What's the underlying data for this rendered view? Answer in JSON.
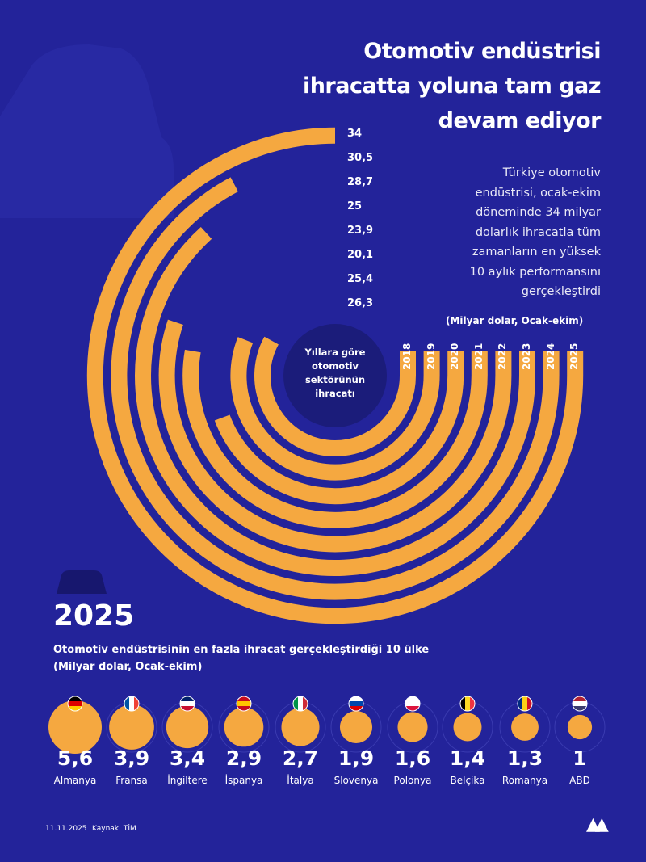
{
  "header": {
    "title_lines": [
      "Otomotiv endüstrisi",
      "ihracatta yoluna tam gaz",
      "devam ediyor"
    ],
    "description_lines": [
      "Türkiye otomotiv",
      "endüstrisi, ocak-ekim",
      "döneminde 34 milyar",
      "dolarlık ihracatla tüm",
      "zamanların en yüksek",
      "10 aylık performansını",
      "gerçekleştirdi"
    ]
  },
  "colors": {
    "background": "#23239a",
    "bar": "#f5a840",
    "center": "#1b1c7a"
  },
  "chart_data": [
    {
      "type": "radial-bar",
      "title": "Yıllara göre otomotiv sektörünün ihracatı",
      "unit": "(Milyar dolar, Ocak-ekim)",
      "categories": [
        "2018",
        "2019",
        "2020",
        "2021",
        "2022",
        "2023",
        "2024",
        "2025"
      ],
      "values": [
        26.3,
        25.4,
        20.1,
        23.9,
        25,
        28.7,
        30.5,
        34
      ],
      "value_labels": [
        "26,3",
        "25,4",
        "20,1",
        "23,9",
        "25",
        "28,7",
        "30,5",
        "34"
      ]
    },
    {
      "type": "bubble",
      "title": "Otomotiv endüstrisinin en fazla ihracat gerçekleştirdiği 10 ülke",
      "unit": "(Milyar dolar, Ocak-ekim)",
      "year": "2025",
      "categories": [
        "Almanya",
        "Fransa",
        "İngiltere",
        "İspanya",
        "İtalya",
        "Slovenya",
        "Polonya",
        "Belçika",
        "Romanya",
        "ABD"
      ],
      "values": [
        5.6,
        3.9,
        3.4,
        2.9,
        2.7,
        1.9,
        1.6,
        1.4,
        1.3,
        1
      ],
      "value_labels": [
        "5,6",
        "3,9",
        "3,4",
        "2,9",
        "2,7",
        "1,9",
        "1,6",
        "1,4",
        "1,3",
        "1"
      ],
      "flags": [
        "de",
        "fr",
        "gb",
        "es",
        "it",
        "si",
        "pl",
        "be",
        "ro",
        "us"
      ]
    }
  ],
  "center_text_lines": [
    "Yıllara göre",
    "otomotiv",
    "sektörünün",
    "ihracatı"
  ],
  "footer": {
    "date": "11.11.2025",
    "source": "Kaynak: TİM",
    "logo": "AA"
  }
}
